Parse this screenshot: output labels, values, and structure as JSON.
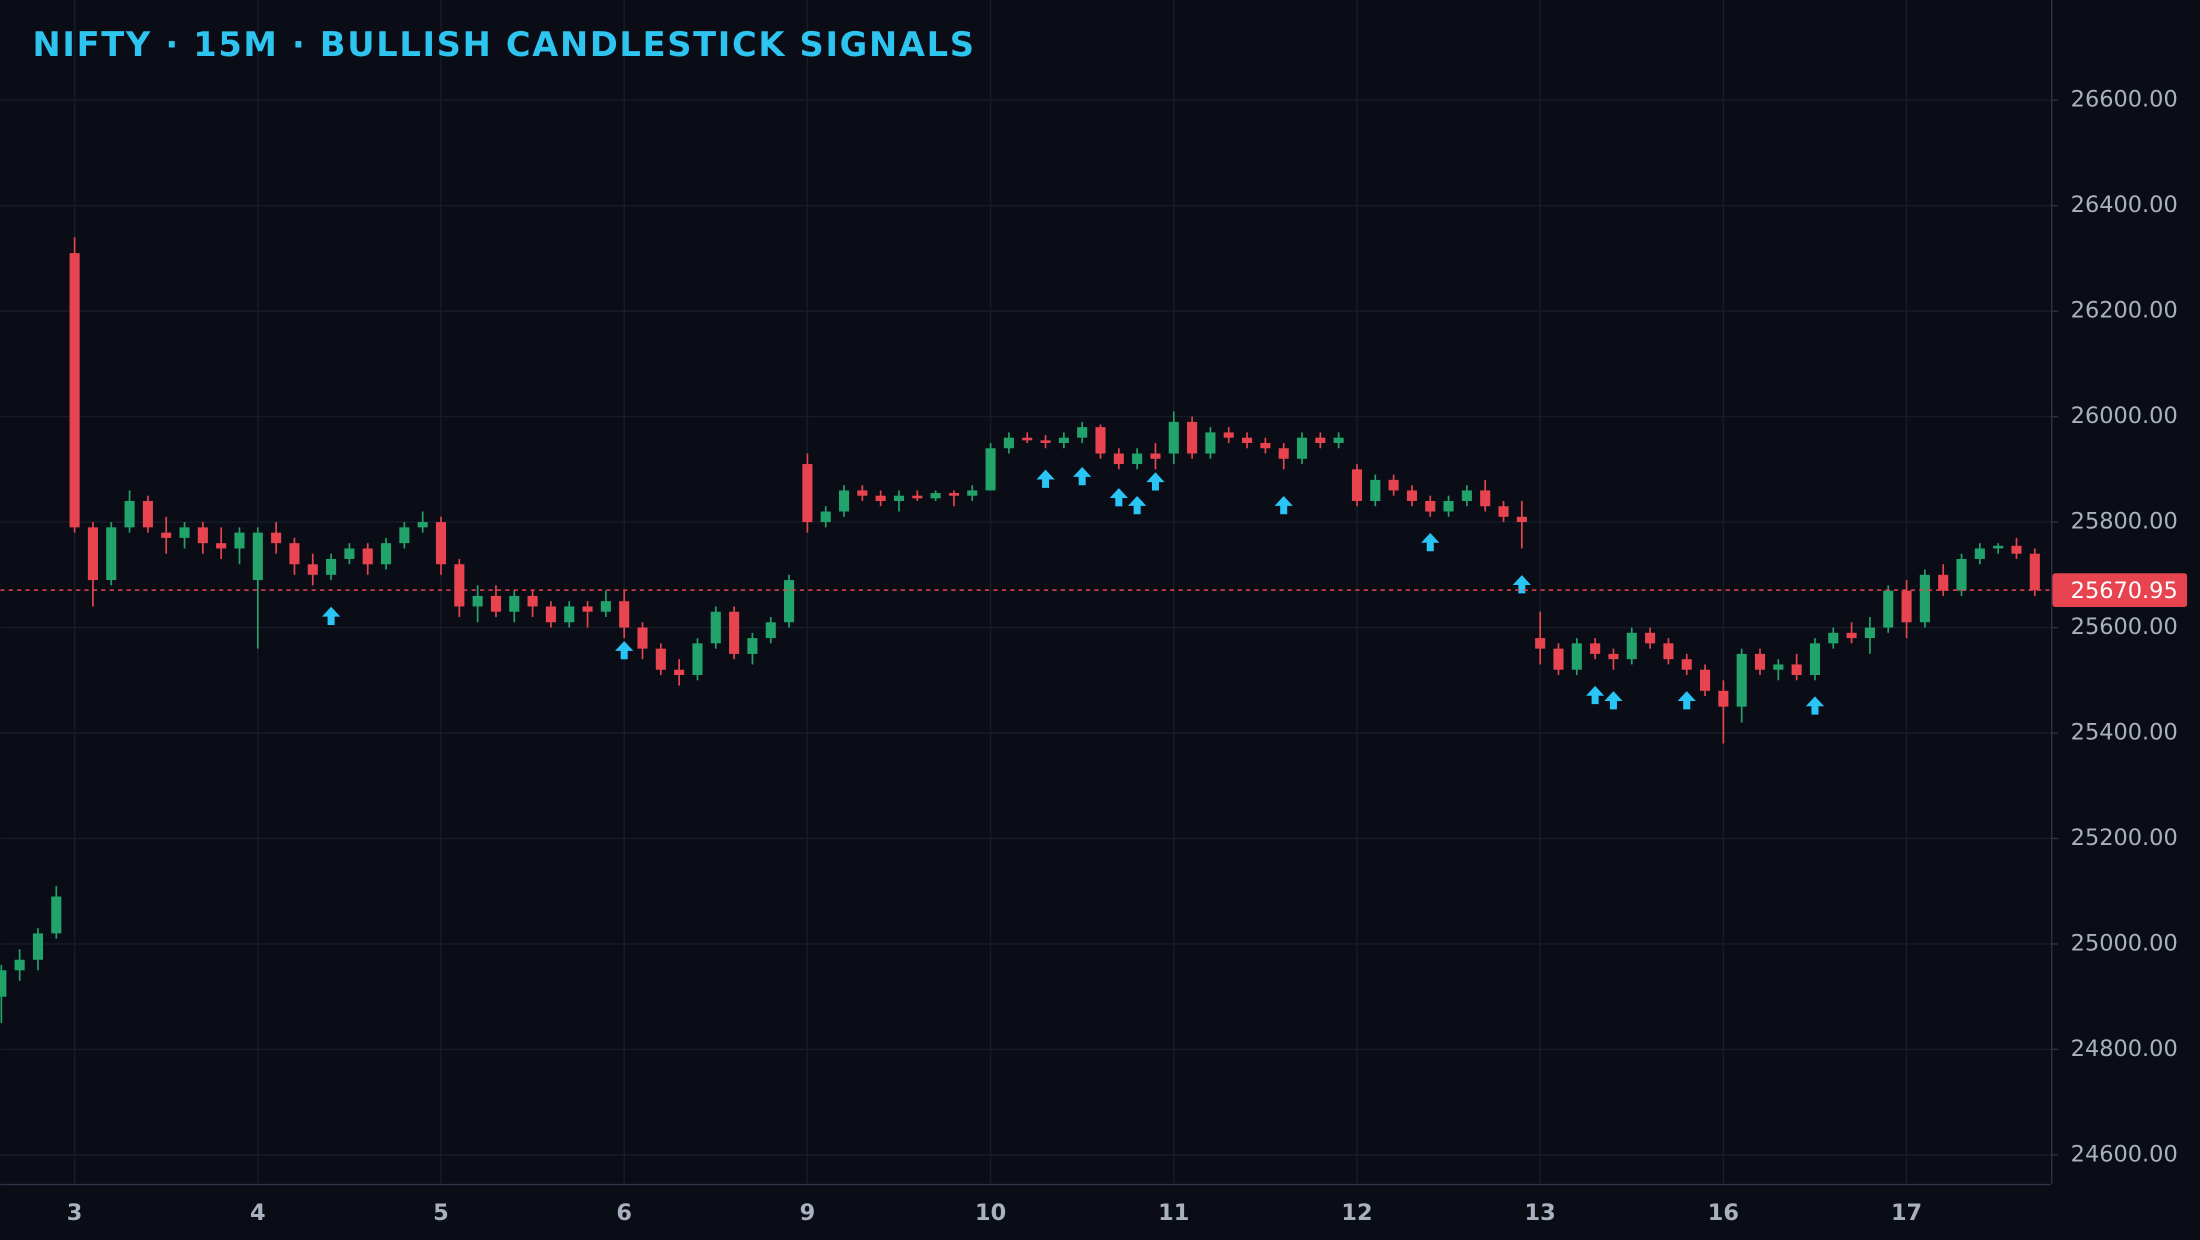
{
  "chart_data": {
    "type": "candlestick",
    "title": "NIFTY · 15M · BULLISH CANDLESTICK SIGNALS",
    "categories": [
      null,
      null,
      null,
      null,
      "3",
      null,
      null,
      null,
      null,
      null,
      null,
      null,
      null,
      null,
      "4",
      null,
      null,
      null,
      null,
      null,
      null,
      null,
      null,
      null,
      "5",
      null,
      null,
      null,
      null,
      null,
      null,
      null,
      null,
      null,
      "6",
      null,
      null,
      null,
      null,
      null,
      null,
      null,
      null,
      null,
      "9",
      null,
      null,
      null,
      null,
      null,
      null,
      null,
      null,
      null,
      "10",
      null,
      null,
      null,
      null,
      null,
      null,
      null,
      null,
      null,
      "11",
      null,
      null,
      null,
      null,
      null,
      null,
      null,
      null,
      null,
      "12",
      null,
      null,
      null,
      null,
      null,
      null,
      null,
      null,
      null,
      "13",
      null,
      null,
      null,
      null,
      null,
      null,
      null,
      null,
      null,
      "16",
      null,
      null,
      null,
      null,
      null,
      null,
      null,
      null,
      null,
      "17",
      null,
      null,
      null,
      null,
      null,
      null,
      null
    ],
    "ohlc": [
      [
        24900,
        24960,
        24850,
        24950
      ],
      [
        24950,
        24990,
        24930,
        24970
      ],
      [
        24970,
        25030,
        24950,
        25020
      ],
      [
        25020,
        25110,
        25010,
        25090
      ],
      [
        26310,
        26340,
        25780,
        25790
      ],
      [
        25790,
        25800,
        25640,
        25690
      ],
      [
        25690,
        25800,
        25680,
        25790
      ],
      [
        25790,
        25860,
        25780,
        25840
      ],
      [
        25840,
        25850,
        25780,
        25790
      ],
      [
        25780,
        25810,
        25740,
        25770
      ],
      [
        25770,
        25800,
        25750,
        25790
      ],
      [
        25790,
        25800,
        25740,
        25760
      ],
      [
        25760,
        25790,
        25730,
        25750
      ],
      [
        25750,
        25790,
        25720,
        25780
      ],
      [
        25690,
        25790,
        25560,
        25780
      ],
      [
        25780,
        25800,
        25740,
        25760
      ],
      [
        25760,
        25770,
        25700,
        25720
      ],
      [
        25720,
        25740,
        25680,
        25700
      ],
      [
        25700,
        25740,
        25690,
        25730
      ],
      [
        25730,
        25760,
        25720,
        25750
      ],
      [
        25750,
        25760,
        25700,
        25720
      ],
      [
        25720,
        25770,
        25710,
        25760
      ],
      [
        25760,
        25800,
        25750,
        25790
      ],
      [
        25790,
        25820,
        25780,
        25800
      ],
      [
        25800,
        25810,
        25700,
        25720
      ],
      [
        25720,
        25730,
        25620,
        25640
      ],
      [
        25640,
        25680,
        25610,
        25660
      ],
      [
        25660,
        25680,
        25620,
        25630
      ],
      [
        25630,
        25670,
        25610,
        25660
      ],
      [
        25660,
        25670,
        25620,
        25640
      ],
      [
        25640,
        25650,
        25600,
        25610
      ],
      [
        25610,
        25650,
        25600,
        25640
      ],
      [
        25640,
        25650,
        25600,
        25630
      ],
      [
        25630,
        25670,
        25620,
        25650
      ],
      [
        25650,
        25670,
        25580,
        25600
      ],
      [
        25600,
        25610,
        25540,
        25560
      ],
      [
        25560,
        25570,
        25510,
        25520
      ],
      [
        25520,
        25540,
        25490,
        25510
      ],
      [
        25510,
        25580,
        25500,
        25570
      ],
      [
        25570,
        25640,
        25560,
        25630
      ],
      [
        25630,
        25640,
        25540,
        25550
      ],
      [
        25550,
        25590,
        25530,
        25580
      ],
      [
        25580,
        25620,
        25570,
        25610
      ],
      [
        25610,
        25700,
        25600,
        25690
      ],
      [
        25910,
        25930,
        25780,
        25800
      ],
      [
        25800,
        25830,
        25790,
        25820
      ],
      [
        25820,
        25870,
        25810,
        25860
      ],
      [
        25860,
        25870,
        25840,
        25850
      ],
      [
        25850,
        25860,
        25830,
        25840
      ],
      [
        25840,
        25860,
        25820,
        25850
      ],
      [
        25850,
        25860,
        25840,
        25845
      ],
      [
        25845,
        25860,
        25840,
        25855
      ],
      [
        25855,
        25860,
        25830,
        25850
      ],
      [
        25850,
        25870,
        25840,
        25860
      ],
      [
        25860,
        25950,
        25860,
        25940
      ],
      [
        25940,
        25970,
        25930,
        25960
      ],
      [
        25960,
        25970,
        25950,
        25955
      ],
      [
        25955,
        25965,
        25940,
        25950
      ],
      [
        25950,
        25970,
        25940,
        25960
      ],
      [
        25960,
        25990,
        25950,
        25980
      ],
      [
        25980,
        25985,
        25920,
        25930
      ],
      [
        25930,
        25940,
        25900,
        25910
      ],
      [
        25910,
        25940,
        25900,
        25930
      ],
      [
        25930,
        25950,
        25900,
        25920
      ],
      [
        25930,
        26010,
        25910,
        25990
      ],
      [
        25990,
        26000,
        25920,
        25930
      ],
      [
        25930,
        25980,
        25920,
        25970
      ],
      [
        25970,
        25980,
        25950,
        25960
      ],
      [
        25960,
        25970,
        25940,
        25950
      ],
      [
        25950,
        25960,
        25930,
        25940
      ],
      [
        25940,
        25950,
        25900,
        25920
      ],
      [
        25920,
        25970,
        25910,
        25960
      ],
      [
        25960,
        25970,
        25940,
        25950
      ],
      [
        25950,
        25970,
        25940,
        25960
      ],
      [
        25900,
        25910,
        25830,
        25840
      ],
      [
        25840,
        25890,
        25830,
        25880
      ],
      [
        25880,
        25890,
        25850,
        25860
      ],
      [
        25860,
        25870,
        25830,
        25840
      ],
      [
        25840,
        25850,
        25810,
        25820
      ],
      [
        25820,
        25850,
        25810,
        25840
      ],
      [
        25840,
        25870,
        25830,
        25860
      ],
      [
        25860,
        25880,
        25820,
        25830
      ],
      [
        25830,
        25840,
        25800,
        25810
      ],
      [
        25810,
        25840,
        25750,
        25800
      ],
      [
        25580,
        25630,
        25530,
        25560
      ],
      [
        25560,
        25570,
        25510,
        25520
      ],
      [
        25520,
        25580,
        25510,
        25570
      ],
      [
        25570,
        25580,
        25540,
        25550
      ],
      [
        25550,
        25560,
        25520,
        25540
      ],
      [
        25540,
        25600,
        25530,
        25590
      ],
      [
        25590,
        25600,
        25560,
        25570
      ],
      [
        25570,
        25580,
        25530,
        25540
      ],
      [
        25540,
        25550,
        25510,
        25520
      ],
      [
        25520,
        25530,
        25470,
        25480
      ],
      [
        25480,
        25500,
        25380,
        25450
      ],
      [
        25450,
        25560,
        25420,
        25550
      ],
      [
        25550,
        25560,
        25510,
        25520
      ],
      [
        25520,
        25540,
        25500,
        25530
      ],
      [
        25530,
        25550,
        25500,
        25510
      ],
      [
        25510,
        25580,
        25500,
        25570
      ],
      [
        25570,
        25600,
        25560,
        25590
      ],
      [
        25590,
        25610,
        25570,
        25580
      ],
      [
        25580,
        25620,
        25550,
        25600
      ],
      [
        25600,
        25680,
        25590,
        25670
      ],
      [
        25670,
        25690,
        25580,
        25610
      ],
      [
        25610,
        25710,
        25600,
        25700
      ],
      [
        25700,
        25720,
        25660,
        25670
      ],
      [
        25670,
        25740,
        25660,
        25730
      ],
      [
        25730,
        25760,
        25720,
        25750
      ],
      [
        25750,
        25760,
        25740,
        25755
      ],
      [
        25755,
        25770,
        25730,
        25740
      ],
      [
        25740,
        25750,
        25660,
        25670.95
      ]
    ],
    "signals": [
      null,
      null,
      null,
      null,
      null,
      null,
      null,
      null,
      null,
      null,
      null,
      null,
      null,
      null,
      null,
      null,
      null,
      null,
      25650,
      null,
      null,
      null,
      null,
      null,
      null,
      null,
      null,
      null,
      null,
      null,
      null,
      null,
      null,
      null,
      25585,
      null,
      null,
      null,
      null,
      null,
      null,
      null,
      null,
      null,
      null,
      null,
      null,
      null,
      null,
      null,
      null,
      null,
      null,
      null,
      null,
      null,
      null,
      25910,
      null,
      25915,
      null,
      25875,
      25860,
      25905,
      null,
      null,
      null,
      null,
      null,
      null,
      25860,
      null,
      null,
      null,
      null,
      null,
      null,
      null,
      25790,
      null,
      null,
      null,
      null,
      25710,
      null,
      null,
      null,
      25500,
      25490,
      null,
      null,
      null,
      25490,
      null,
      null,
      null,
      null,
      null,
      null,
      25480,
      null,
      null,
      null,
      null,
      null,
      null,
      null,
      null,
      null,
      null,
      null,
      null,
      null
    ],
    "up_color": "#22a36b",
    "down_color": "#e8444f",
    "signal_color": "#29c5f6",
    "last_price": 25670.95,
    "last_price_color": "#e8444f",
    "ylim": [
      24545,
      26790
    ],
    "yticks": [
      {
        "value": 24600,
        "label": "24600.00"
      },
      {
        "value": 24800,
        "label": "24800.00"
      },
      {
        "value": 25000,
        "label": "25000.00"
      },
      {
        "value": 25200,
        "label": "25200.00"
      },
      {
        "value": 25400,
        "label": "25400.00"
      },
      {
        "value": 25600,
        "label": "25600.00"
      },
      {
        "value": 25800,
        "label": "25800.00"
      },
      {
        "value": 26000,
        "label": "26000.00"
      },
      {
        "value": 26200,
        "label": "26200.00"
      },
      {
        "value": 26400,
        "label": "26400.00"
      },
      {
        "value": 26600,
        "label": "26600.00"
      }
    ],
    "grid": true
  }
}
